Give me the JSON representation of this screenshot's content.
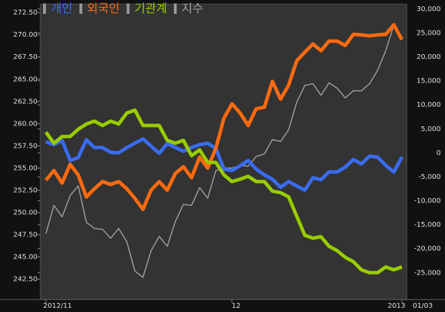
{
  "chart_data": {
    "type": "line",
    "legend_marker_color": "#9a9a9a",
    "categories": [
      "2012/11",
      null,
      null,
      null,
      null,
      null,
      null,
      null,
      null,
      null,
      null,
      null,
      null,
      null,
      null,
      null,
      null,
      null,
      null,
      null,
      null,
      null,
      null,
      "12",
      null,
      null,
      null,
      null,
      null,
      null,
      null,
      null,
      null,
      null,
      null,
      null,
      null,
      null,
      null,
      null,
      null,
      null,
      null,
      null,
      "2013"
    ],
    "date_label": "01/03",
    "series": [
      {
        "name": "개인",
        "color": "#3a6cf0",
        "axis": "y2",
        "values": [
          2300,
          1700,
          2600,
          -1600,
          -1000,
          2700,
          1100,
          1100,
          100,
          0,
          1100,
          2000,
          2900,
          1400,
          -100,
          1900,
          1100,
          300,
          1100,
          1700,
          2000,
          900,
          -3400,
          -3700,
          -2700,
          -1600,
          -3400,
          -4600,
          -5500,
          -7200,
          -6000,
          -6900,
          -7800,
          -5200,
          -5600,
          -4000,
          -4000,
          -3000,
          -1400,
          -2300,
          -700,
          -900,
          -2600,
          -4000,
          -900
        ]
      },
      {
        "name": "외국인",
        "color": "#ff6a10",
        "axis": "y2",
        "values": [
          -5700,
          -3700,
          -6300,
          -2400,
          -4600,
          -9200,
          -7500,
          -6000,
          -6600,
          -6000,
          -7500,
          -9500,
          -11800,
          -7800,
          -6000,
          -7800,
          -4300,
          -2900,
          -5200,
          -900,
          -3200,
          900,
          7200,
          10200,
          8300,
          5700,
          9200,
          9500,
          14900,
          11200,
          14100,
          19200,
          21000,
          22700,
          21300,
          23300,
          23300,
          22400,
          24700,
          24600,
          24400,
          24600,
          24700,
          26700,
          23600
        ]
      },
      {
        "name": "기관계",
        "color": "#99cc00",
        "axis": "y2",
        "values": [
          4300,
          2000,
          3400,
          3400,
          4900,
          6000,
          6600,
          5700,
          6600,
          6000,
          8300,
          8900,
          5700,
          5700,
          5700,
          2600,
          2000,
          2600,
          -600,
          600,
          -2000,
          -2000,
          -4600,
          -6000,
          -5500,
          -4900,
          -6000,
          -6000,
          -8000,
          -8300,
          -9200,
          -13200,
          -17200,
          -17800,
          -17500,
          -19500,
          -20400,
          -21800,
          -22700,
          -24400,
          -25000,
          -25000,
          -23800,
          -24400,
          -23800
        ]
      },
      {
        "name": "지수",
        "color": "#a0a0a0",
        "axis": "y",
        "values": [
          247.6,
          250.8,
          249.5,
          251.9,
          253.0,
          248.9,
          248.2,
          248.1,
          247.1,
          248.2,
          246.7,
          243.4,
          242.7,
          245.7,
          247.3,
          246.2,
          249.0,
          250.9,
          250.8,
          252.8,
          251.6,
          254.7,
          255.0,
          255.0,
          255.3,
          255.2,
          256.3,
          256.6,
          258.2,
          258.0,
          259.3,
          262.4,
          264.3,
          264.5,
          263.2,
          264.6,
          264.0,
          262.9,
          263.7,
          263.7,
          264.5,
          266.0,
          268.2,
          271.1,
          269.8
        ]
      }
    ],
    "ylim": [
      240.2,
      273.45
    ],
    "yticks": [
      {
        "value": 242.5,
        "label": "242.50"
      },
      {
        "value": 245,
        "label": "245.00"
      },
      {
        "value": 247.5,
        "label": "247.50"
      },
      {
        "value": 250,
        "label": "250.00"
      },
      {
        "value": 252.5,
        "label": "252.50"
      },
      {
        "value": 255,
        "label": "255.00"
      },
      {
        "value": 257.5,
        "label": "257.50"
      },
      {
        "value": 260,
        "label": "260.00"
      },
      {
        "value": 262.5,
        "label": "262.50"
      },
      {
        "value": 265,
        "label": "265.00"
      },
      {
        "value": 267.5,
        "label": "267.50"
      },
      {
        "value": 270,
        "label": "270.00"
      },
      {
        "value": 272.5,
        "label": "272.50"
      }
    ],
    "y2lim": [
      -30600,
      31000
    ],
    "y2ticks": [
      {
        "value": -25000,
        "label": "-25,000"
      },
      {
        "value": -20000,
        "label": "-20,000"
      },
      {
        "value": -15000,
        "label": "-15,000"
      },
      {
        "value": -10000,
        "label": "-10,000"
      },
      {
        "value": -5000,
        "label": "-5,000"
      },
      0,
      {
        "value": 5000,
        "label": "5,000"
      },
      {
        "value": 10000,
        "label": "10,000"
      },
      {
        "value": 15000,
        "label": "15,000"
      },
      {
        "value": 20000,
        "label": "20,000"
      },
      {
        "value": 25000,
        "label": "25,000"
      },
      {
        "value": 30000,
        "label": "30,000"
      }
    ]
  }
}
